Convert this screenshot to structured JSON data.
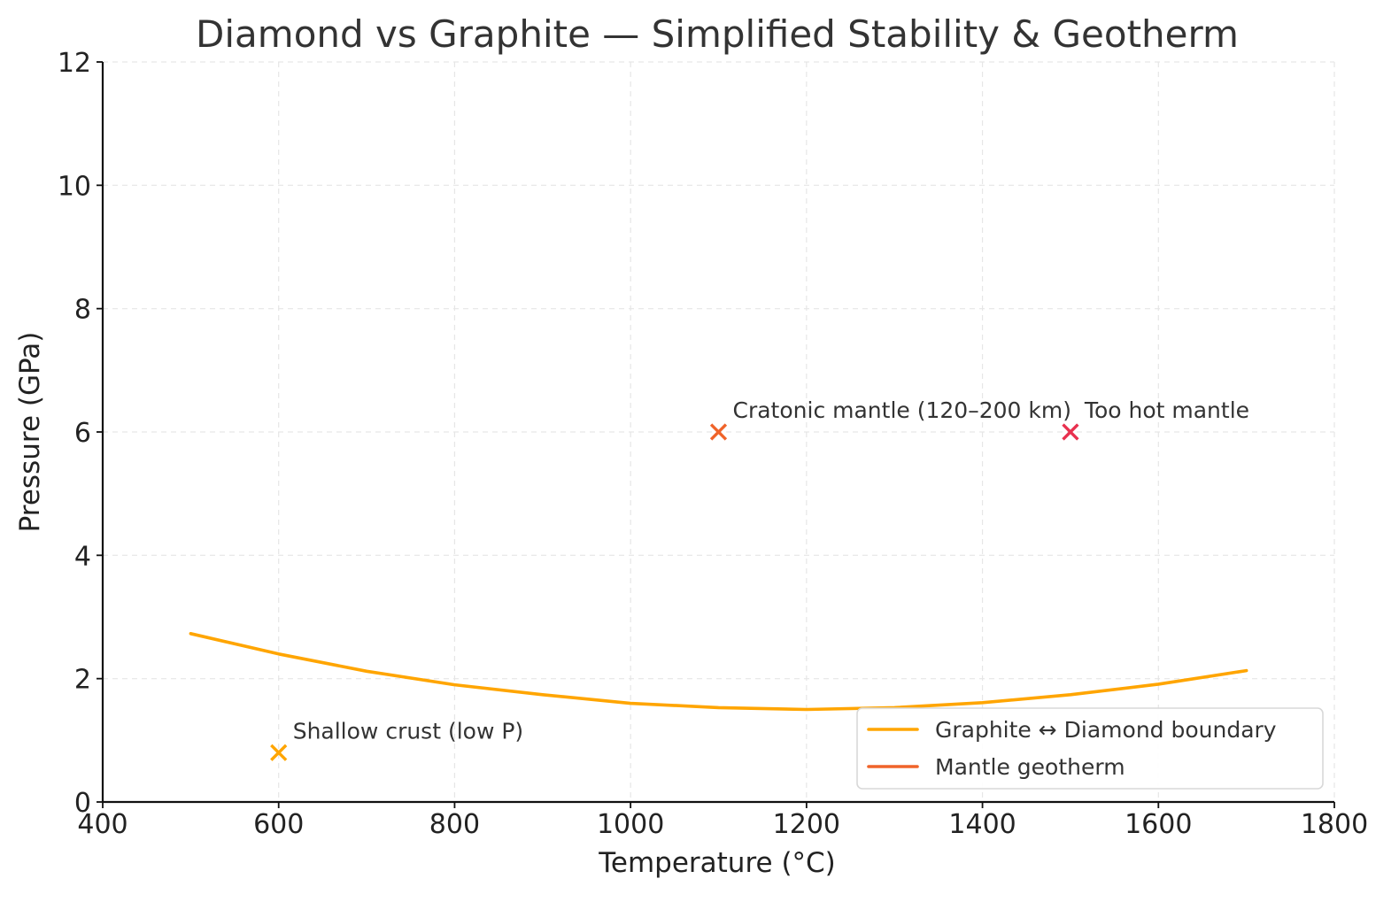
{
  "chart_data": {
    "type": "line",
    "title": "Diamond vs Graphite — Simplified Stability & Geotherm",
    "xlabel": "Temperature (°C)",
    "ylabel": "Pressure (GPa)",
    "xlim": [
      400,
      1800
    ],
    "ylim": [
      0,
      12
    ],
    "xticks": [
      400,
      600,
      800,
      1000,
      1200,
      1400,
      1600,
      1800
    ],
    "yticks": [
      0,
      2,
      4,
      6,
      8,
      10,
      12
    ],
    "grid": true,
    "legend_position": "lower right",
    "series": [
      {
        "name": "Graphite ↔ Diamond boundary",
        "color": "#FFA500",
        "x": [
          500,
          600,
          700,
          800,
          900,
          1000,
          1100,
          1200,
          1300,
          1400,
          1500,
          1600,
          1700
        ],
        "y": [
          2.73,
          2.4,
          2.12,
          1.9,
          1.74,
          1.6,
          1.53,
          1.5,
          1.53,
          1.61,
          1.74,
          1.91,
          2.13
        ]
      },
      {
        "name": "Mantle geotherm",
        "color": "#F0642A",
        "x": [],
        "y": []
      }
    ],
    "points": [
      {
        "label": "Shallow crust (low P)",
        "x": 600,
        "y": 0.8,
        "color": "#FFA500",
        "marker": "x"
      },
      {
        "label": "Cratonic mantle (120–200 km)",
        "x": 1100,
        "y": 6,
        "color": "#F0642A",
        "marker": "x"
      },
      {
        "label": "Too hot mantle",
        "x": 1500,
        "y": 6,
        "color": "#E8304E",
        "marker": "x"
      }
    ]
  }
}
